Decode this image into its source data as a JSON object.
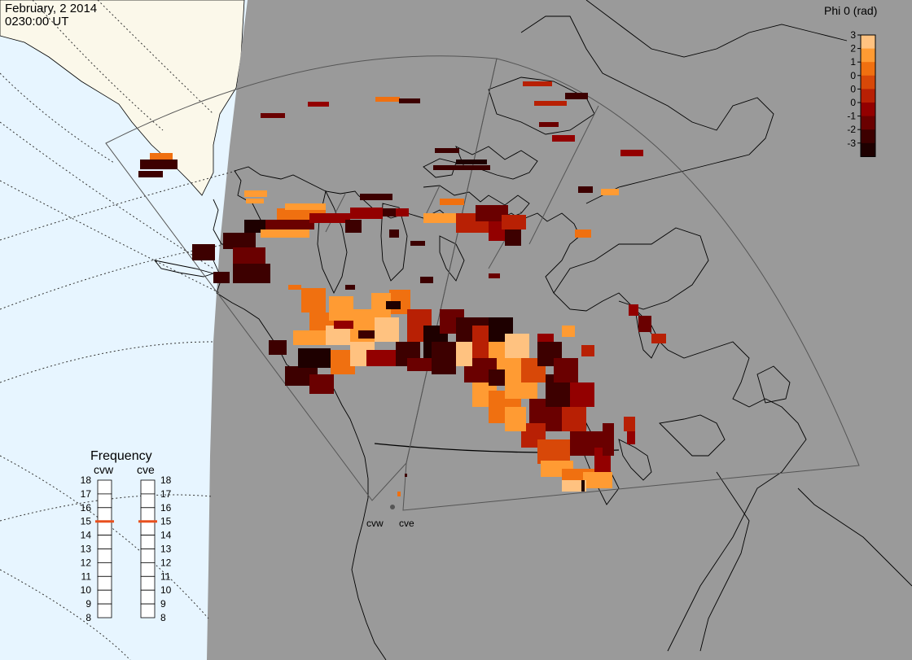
{
  "header": {
    "date": "February, 2 2014",
    "time": "0230:00 UT"
  },
  "colorbar": {
    "title": "Phi 0 (rad)",
    "ticks": [
      "3",
      "2",
      "1",
      "0",
      "0",
      "0",
      "-1",
      "-2",
      "-3"
    ],
    "colors": [
      "#ffc280",
      "#ff9b33",
      "#f07010",
      "#d84808",
      "#b82004",
      "#930000",
      "#6a0000",
      "#3d0000",
      "#1e0000"
    ]
  },
  "frequency": {
    "title": "Frequency",
    "cvw_label": "cvw",
    "cve_label": "cve",
    "ticks": [
      "18",
      "17",
      "16",
      "15",
      "14",
      "13",
      "12",
      "11",
      "10",
      "9",
      "8"
    ],
    "cvw_value": 15,
    "cve_value": 15,
    "indicator_color": "#e8501e"
  },
  "radars": {
    "cvw_label": "cvw",
    "cve_label": "cve"
  },
  "colors": {
    "land_gray": "#9a9a9a",
    "ocean": "#e7f5ff",
    "land_day": "#fbf8ea"
  }
}
